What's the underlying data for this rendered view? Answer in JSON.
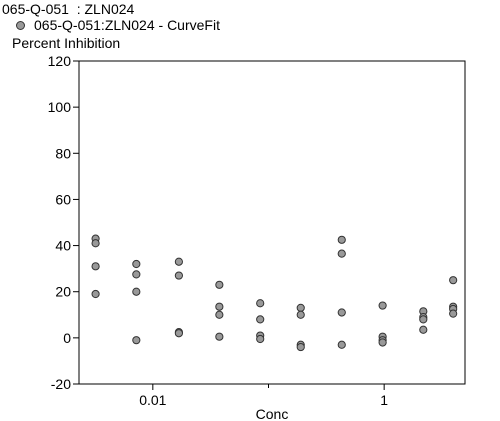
{
  "chart_data": {
    "type": "scatter",
    "title": "065-Q-051  : ZLN024",
    "legend": [
      {
        "name": "065-Q-051:ZLN024 - CurveFit",
        "color": "#999999",
        "placement": "top-left"
      }
    ],
    "ylabel": "Percent Inhibition",
    "xlabel": "Conc",
    "x_scale": "log",
    "xlim": [
      0.0023,
      5.0
    ],
    "ylim": [
      -20,
      120
    ],
    "yticks": [
      -20,
      0,
      20,
      40,
      60,
      80,
      100,
      120
    ],
    "xticks_major": [
      {
        "value": 0.01,
        "label": "0.01"
      },
      {
        "value": 1,
        "label": "1"
      }
    ],
    "xticks_minor": [
      0.1
    ],
    "grid": false,
    "series": [
      {
        "name": "065-Q-051:ZLN024 - CurveFit",
        "color": "#999999",
        "points": [
          {
            "x": 0.0032,
            "y": 43
          },
          {
            "x": 0.0032,
            "y": 41
          },
          {
            "x": 0.0032,
            "y": 31
          },
          {
            "x": 0.0032,
            "y": 19
          },
          {
            "x": 0.0072,
            "y": 32
          },
          {
            "x": 0.0072,
            "y": 27.5
          },
          {
            "x": 0.0072,
            "y": 20
          },
          {
            "x": 0.0072,
            "y": -1
          },
          {
            "x": 0.0168,
            "y": 33
          },
          {
            "x": 0.0168,
            "y": 27
          },
          {
            "x": 0.0168,
            "y": 2.5
          },
          {
            "x": 0.0168,
            "y": 2
          },
          {
            "x": 0.0376,
            "y": 23
          },
          {
            "x": 0.0376,
            "y": 13.5
          },
          {
            "x": 0.0376,
            "y": 10
          },
          {
            "x": 0.0376,
            "y": 0.5
          },
          {
            "x": 0.0848,
            "y": 15
          },
          {
            "x": 0.0848,
            "y": 8
          },
          {
            "x": 0.0848,
            "y": 1
          },
          {
            "x": 0.0848,
            "y": -0.5
          },
          {
            "x": 0.19,
            "y": 13
          },
          {
            "x": 0.19,
            "y": 10
          },
          {
            "x": 0.19,
            "y": -3
          },
          {
            "x": 0.19,
            "y": -4
          },
          {
            "x": 0.43,
            "y": 42.5
          },
          {
            "x": 0.43,
            "y": 36.5
          },
          {
            "x": 0.43,
            "y": 11
          },
          {
            "x": 0.43,
            "y": -3
          },
          {
            "x": 0.97,
            "y": 14
          },
          {
            "x": 0.97,
            "y": 0.5
          },
          {
            "x": 0.97,
            "y": -1
          },
          {
            "x": 0.97,
            "y": -2
          },
          {
            "x": 2.18,
            "y": 11.5
          },
          {
            "x": 2.18,
            "y": 9
          },
          {
            "x": 2.18,
            "y": 8
          },
          {
            "x": 2.18,
            "y": 3.5
          },
          {
            "x": 3.95,
            "y": 25
          },
          {
            "x": 3.95,
            "y": 13.5
          },
          {
            "x": 3.95,
            "y": 12.5
          },
          {
            "x": 3.95,
            "y": 10.5
          }
        ]
      }
    ]
  }
}
